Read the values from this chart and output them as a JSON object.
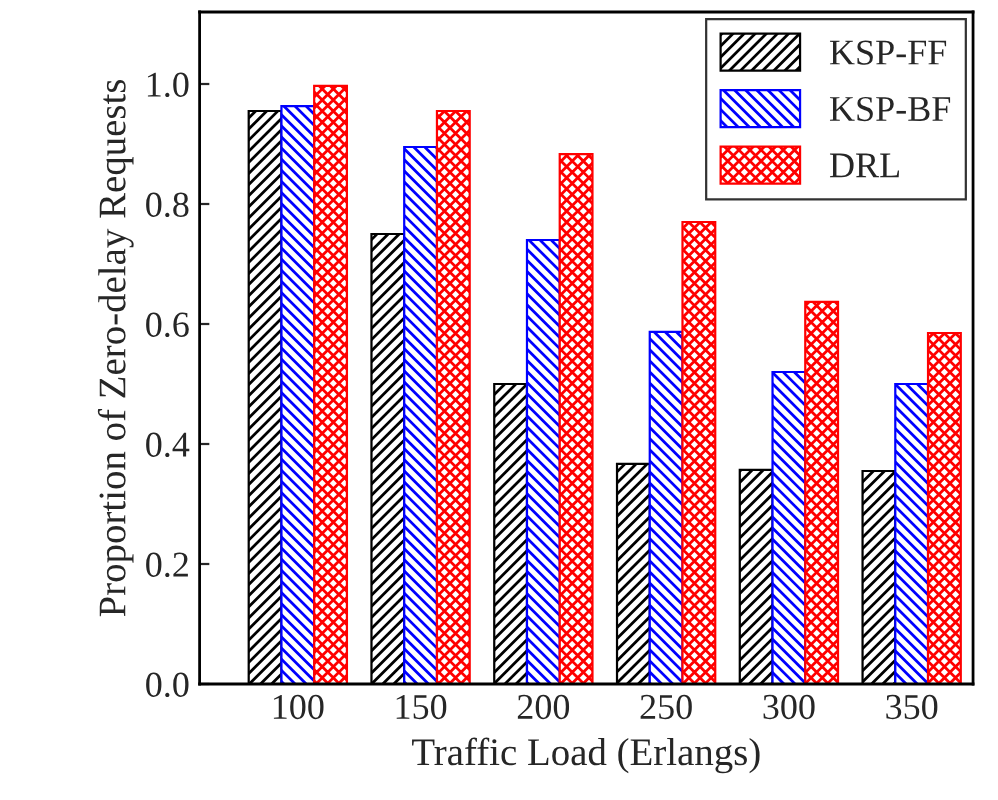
{
  "chart_data": {
    "type": "bar",
    "xlabel": "Traffic Load (Erlangs)",
    "ylabel": "Proportion of Zero-delay Requests",
    "categories": [
      "100",
      "150",
      "200",
      "250",
      "300",
      "350"
    ],
    "series": [
      {
        "name": "KSP-FF",
        "color": "#000000",
        "values": [
          0.955,
          0.75,
          0.5,
          0.367,
          0.357,
          0.355
        ]
      },
      {
        "name": "KSP-BF",
        "color": "#0000ff",
        "values": [
          0.963,
          0.895,
          0.74,
          0.587,
          0.52,
          0.5
        ]
      },
      {
        "name": "DRL",
        "color": "#ff0000",
        "values": [
          0.997,
          0.955,
          0.883,
          0.77,
          0.637,
          0.585
        ]
      }
    ],
    "ylim": [
      0,
      1.12
    ],
    "yticks": [
      {
        "value": 0,
        "label": "0.0"
      },
      {
        "value": 0.2,
        "label": "0.2"
      },
      {
        "value": 0.4,
        "label": "0.4"
      },
      {
        "value": 0.6,
        "label": "0.6"
      },
      {
        "value": 0.8,
        "label": "0.8"
      },
      {
        "value": 1,
        "label": "1.0"
      }
    ],
    "legend": "top right",
    "grid": false
  }
}
